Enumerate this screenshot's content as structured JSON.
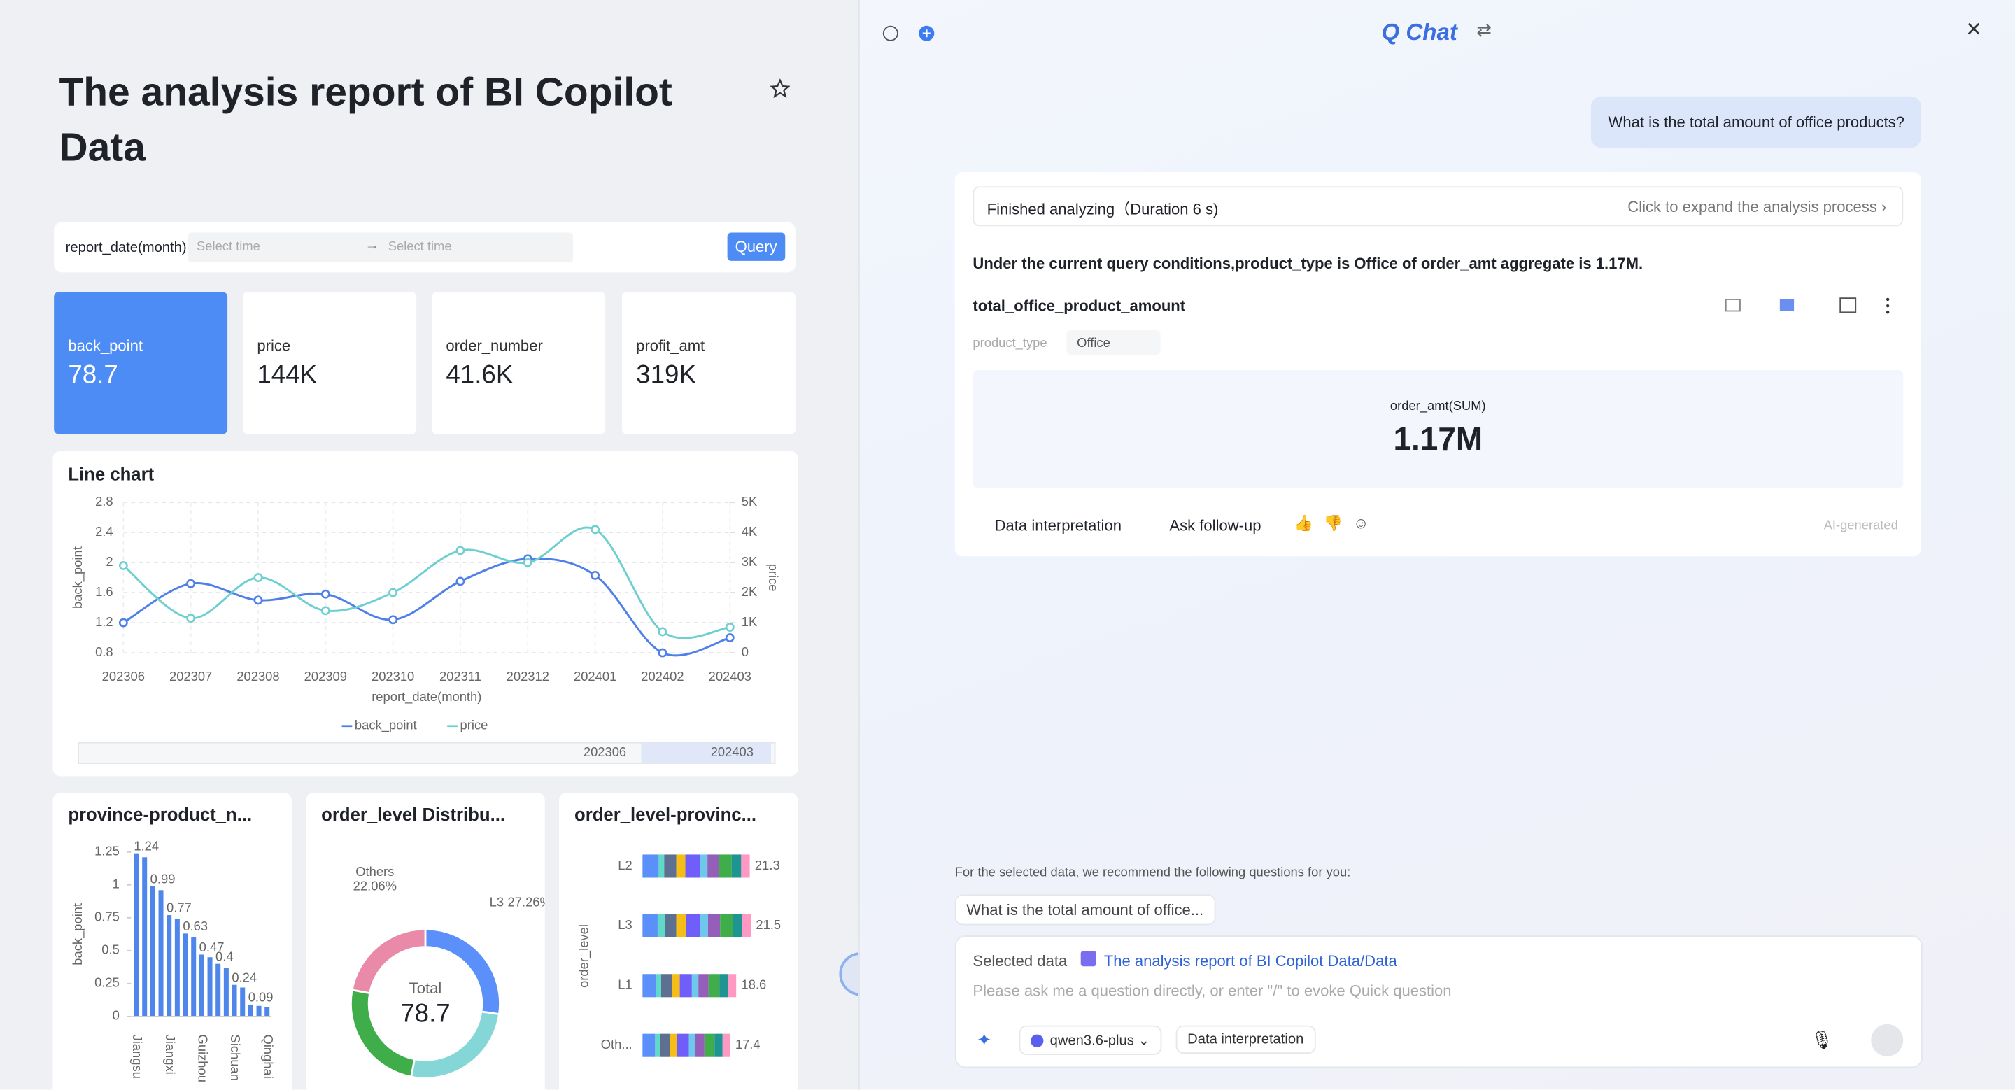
{
  "report": {
    "title": "The analysis report of BI Copilot Data",
    "filter_label": "report_date(month)",
    "start_placeholder": "Select time",
    "end_placeholder": "Select time",
    "query_button": "Query",
    "kpis": [
      {
        "label": "back_point",
        "value": "78.7"
      },
      {
        "label": "price",
        "value": "144K"
      },
      {
        "label": "order_number",
        "value": "41.6K"
      },
      {
        "label": "profit_amt",
        "value": "319K"
      }
    ]
  },
  "chart_data": [
    {
      "type": "line",
      "title": "Line chart",
      "x_label": "report_date(month)",
      "y_label": "back_point",
      "y2_label": "price",
      "categories": [
        "202306",
        "202307",
        "202308",
        "202309",
        "202310",
        "202311",
        "202312",
        "202401",
        "202402",
        "202403"
      ],
      "ylim": [
        0.8,
        2.8
      ],
      "yticks": [
        0.8,
        1.2,
        1.6,
        2,
        2.4,
        2.8
      ],
      "y2lim": [
        0,
        5000
      ],
      "y2ticks": [
        0,
        {
          "value": 1000,
          "label": "1K"
        },
        {
          "value": 2000,
          "label": "2K"
        },
        {
          "value": 3000,
          "label": "3K"
        },
        {
          "value": 4000,
          "label": "4K"
        },
        {
          "value": 5000,
          "label": "5K"
        }
      ],
      "grid": true,
      "series": [
        {
          "name": "back_point",
          "color": "#4f7fe8",
          "values": [
            1.2,
            1.72,
            1.5,
            1.58,
            1.24,
            1.75,
            2.05,
            1.83,
            0.8,
            1.0
          ]
        },
        {
          "name": "price",
          "color": "#6fcfd0",
          "axis": "y2",
          "values": [
            2900,
            1150,
            2500,
            1400,
            2000,
            3400,
            3000,
            4100,
            700,
            850
          ]
        }
      ]
    },
    {
      "type": "bar",
      "title": "province-product_n...",
      "y_label": "back_point",
      "color": "#4f86ec",
      "categories": [
        "Jiangsu",
        null,
        null,
        null,
        "Jiangxi",
        null,
        null,
        null,
        "Guizhou",
        null,
        null,
        null,
        "Sichuan",
        null,
        null,
        null,
        "Qinghai"
      ],
      "values": [
        1.24,
        1.21,
        0.99,
        0.96,
        0.77,
        0.74,
        0.63,
        0.6,
        0.47,
        0.45,
        0.4,
        0.37,
        0.24,
        0.22,
        0.09,
        0.08,
        0.07
      ],
      "value_labels": [
        "1.24",
        null,
        "0.99",
        null,
        "0.77",
        null,
        "0.63",
        null,
        "0.47",
        null,
        "0.4",
        null,
        "0.24",
        null,
        "0.09",
        null,
        null
      ],
      "ylim": [
        0,
        1.25
      ],
      "yticks": [
        0,
        0.25,
        0.5,
        0.75,
        1,
        1.25
      ]
    },
    {
      "type": "donut",
      "title": "order_level Distribu...",
      "total_label": "Total",
      "total": 78.7,
      "categories": [
        "L3",
        null,
        null,
        "Others"
      ],
      "values": [
        27.26,
        25.8,
        24.88,
        22.06
      ],
      "value_labels": [
        "27.26%",
        null,
        null,
        "22.06%"
      ],
      "colors": [
        "#5b8ff9",
        "#85d6d6",
        "#3fae4a",
        "#e98aa8"
      ]
    },
    {
      "type": "stacked_hbar",
      "title": "order_level-provinc...",
      "y_label": "order_level",
      "categories": [
        "L2",
        "L3",
        "L1",
        "Oth..."
      ],
      "totals": [
        21.3,
        21.5,
        18.6,
        17.4
      ],
      "xlim": [
        0,
        24
      ],
      "series": [
        {
          "color": "#5b8ff9",
          "values": [
            3.2,
            3.0,
            2.7,
            2.5
          ]
        },
        {
          "color": "#61d9c8",
          "values": [
            1.1,
            1.4,
            1.0,
            1.0
          ]
        },
        {
          "color": "#5d7092",
          "values": [
            2.4,
            2.3,
            2.1,
            1.9
          ]
        },
        {
          "color": "#f6bd16",
          "values": [
            1.8,
            2.0,
            1.6,
            1.5
          ]
        },
        {
          "color": "#6f5ef9",
          "values": [
            2.9,
            2.7,
            2.4,
            2.3
          ]
        },
        {
          "color": "#6dc8ec",
          "values": [
            1.5,
            1.6,
            1.3,
            1.2
          ]
        },
        {
          "color": "#945fb9",
          "values": [
            2.2,
            2.4,
            2.0,
            1.9
          ]
        },
        {
          "color": "#3fae4a",
          "values": [
            2.6,
            2.5,
            2.2,
            2.0
          ]
        },
        {
          "color": "#1e9493",
          "values": [
            1.9,
            1.8,
            1.7,
            1.6
          ]
        },
        {
          "color": "#ff99c3",
          "values": [
            1.7,
            1.8,
            1.6,
            1.5
          ]
        }
      ]
    }
  ],
  "chat": {
    "title": "Q Chat",
    "question": "What is the total amount of office products?",
    "status": "Finished analyzing（Duration 6 s)",
    "expand": "Click to expand the analysis process",
    "answer": "Under the current query conditions,product_type is Office of order_amt aggregate is 1.17M.",
    "result_title": "total_office_product_amount",
    "filter_field": "product_type",
    "filter_value": "Office",
    "metric_label": "order_amt(SUM)",
    "metric_value": "1.17M",
    "actions": [
      "Data interpretation",
      "Ask follow-up"
    ],
    "ai_badge": "AI-generated",
    "recommend_intro": "For the selected data, we recommend the following questions for you:",
    "recommendations": [
      "What is the total amount of office..."
    ],
    "selected_data_label": "Selected data",
    "selected_data": "The analysis report of BI Copilot Data/Data",
    "input_placeholder": "Please ask me a question directly, or enter \"/\" to evoke Quick question",
    "model": "qwen3.6-plus",
    "mode": "Data interpretation"
  }
}
